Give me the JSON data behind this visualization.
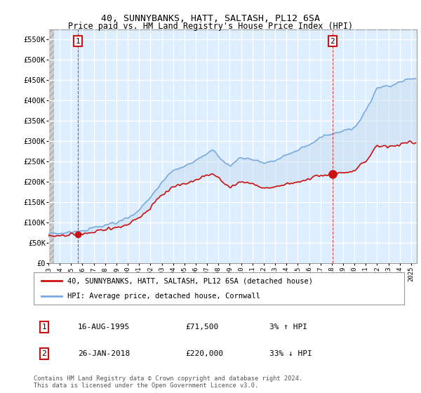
{
  "title": "40, SUNNYBANKS, HATT, SALTASH, PL12 6SA",
  "subtitle": "Price paid vs. HM Land Registry's House Price Index (HPI)",
  "ylabel_ticks": [
    "£0",
    "£50K",
    "£100K",
    "£150K",
    "£200K",
    "£250K",
    "£300K",
    "£350K",
    "£400K",
    "£450K",
    "£500K",
    "£550K"
  ],
  "ytick_values": [
    0,
    50000,
    100000,
    150000,
    200000,
    250000,
    300000,
    350000,
    400000,
    450000,
    500000,
    550000
  ],
  "ylim": [
    0,
    575000
  ],
  "xlim_start": 1993.0,
  "xlim_end": 2025.5,
  "xticks": [
    1993,
    1994,
    1995,
    1996,
    1997,
    1998,
    1999,
    2000,
    2001,
    2002,
    2003,
    2004,
    2005,
    2006,
    2007,
    2008,
    2009,
    2010,
    2011,
    2012,
    2013,
    2014,
    2015,
    2016,
    2017,
    2018,
    2019,
    2020,
    2021,
    2022,
    2023,
    2024,
    2025
  ],
  "hpi_color": "#7aaadd",
  "price_color": "#cc1111",
  "vline_color": "#cc1111",
  "fill_color": "#c8ddf0",
  "transaction1": {
    "date_num": 1995.62,
    "price": 71500,
    "label": "1",
    "date_str": "16-AUG-1995",
    "hpi_rel": "3% ↑ HPI"
  },
  "transaction2": {
    "date_num": 2018.07,
    "price": 220000,
    "label": "2",
    "date_str": "26-JAN-2018",
    "hpi_rel": "33% ↓ HPI"
  },
  "legend_line1": "40, SUNNYBANKS, HATT, SALTASH, PL12 6SA (detached house)",
  "legend_line2": "HPI: Average price, detached house, Cornwall",
  "note": "Contains HM Land Registry data © Crown copyright and database right 2024.\nThis data is licensed under the Open Government Licence v3.0.",
  "plot_bg_color": "#ddeeff",
  "hatch_color": "#bbcccc",
  "grid_color": "#ffffff",
  "box_label_color": "#cc1111"
}
